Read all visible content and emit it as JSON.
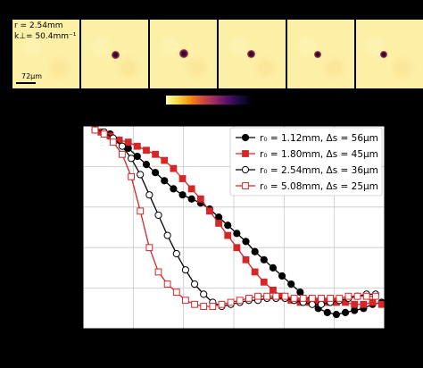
{
  "strip": {
    "r_label": "r = 2.54mm",
    "k_label": "k⊥= 50.4mm⁻¹",
    "scale_label": "72μm"
  },
  "colors": {
    "series_black": "#000000",
    "series_red": "#d62728",
    "frame_bg": "#fcefa6"
  },
  "chart_data": {
    "type": "scatter",
    "grid": true,
    "legend_position": "top-right",
    "xlim": [
      0,
      100
    ],
    "ylim": [
      0,
      100
    ],
    "series": [
      {
        "name": "r₀ = 1.12mm, Δs = 56μm",
        "marker": "circle-filled",
        "color": "#000000",
        "x": [
          6,
          9,
          12,
          15,
          18,
          21,
          24,
          27,
          30,
          33,
          36,
          39,
          42,
          45,
          48,
          51,
          54,
          57,
          60,
          63,
          66,
          69,
          72,
          75,
          78,
          81,
          84,
          87,
          90,
          93,
          96,
          99
        ],
        "y": [
          97,
          96,
          93,
          89,
          85,
          81,
          77,
          73,
          69,
          66,
          64,
          62,
          59,
          55,
          51,
          47,
          43,
          38,
          34,
          30,
          26,
          22,
          18,
          14,
          10,
          8,
          7,
          8,
          9,
          10,
          12,
          13
        ]
      },
      {
        "name": "r₀ = 1.80mm, Δs = 45μm",
        "marker": "square-filled",
        "color": "#d62728",
        "x": [
          6,
          9,
          12,
          15,
          18,
          21,
          24,
          27,
          30,
          33,
          36,
          39,
          42,
          45,
          48,
          51,
          54,
          57,
          60,
          63,
          66,
          69,
          72,
          75,
          78,
          81,
          84,
          87,
          90,
          93,
          96,
          99
        ],
        "y": [
          97,
          95,
          93,
          92,
          90,
          88,
          86,
          83,
          79,
          74,
          69,
          64,
          58,
          52,
          46,
          40,
          34,
          28,
          23,
          19,
          16,
          14,
          13,
          13,
          13,
          13,
          13,
          13,
          12,
          12,
          13,
          12
        ]
      },
      {
        "name": "r₀ = 2.54mm, Δs = 36μm",
        "marker": "circle-open",
        "color": "#000000",
        "x": [
          4,
          7,
          10,
          13,
          16,
          19,
          22,
          25,
          28,
          31,
          34,
          37,
          40,
          43,
          46,
          49,
          52,
          55,
          58,
          61,
          64,
          67,
          70,
          73,
          76,
          79,
          82,
          85,
          88,
          91,
          94,
          97
        ],
        "y": [
          98,
          97,
          94,
          90,
          84,
          76,
          66,
          56,
          46,
          37,
          29,
          22,
          17,
          13,
          11,
          12,
          13,
          14,
          14,
          15,
          15,
          15,
          14,
          13,
          12,
          12,
          13,
          14,
          15,
          16,
          17,
          17
        ]
      },
      {
        "name": "r₀ = 5.08mm, Δs = 25μm",
        "marker": "square-open",
        "color": "#d62728",
        "x": [
          4,
          7,
          10,
          13,
          16,
          19,
          22,
          25,
          28,
          31,
          34,
          37,
          40,
          43,
          46,
          49,
          52,
          55,
          58,
          61,
          64,
          67,
          70,
          73,
          76,
          79,
          82,
          85,
          88,
          91,
          94,
          97
        ],
        "y": [
          98,
          96,
          92,
          86,
          75,
          58,
          40,
          28,
          22,
          18,
          14,
          12,
          11,
          11,
          12,
          13,
          14,
          15,
          16,
          16,
          16,
          16,
          15,
          15,
          15,
          15,
          15,
          15,
          16,
          16,
          16,
          16
        ]
      }
    ]
  }
}
